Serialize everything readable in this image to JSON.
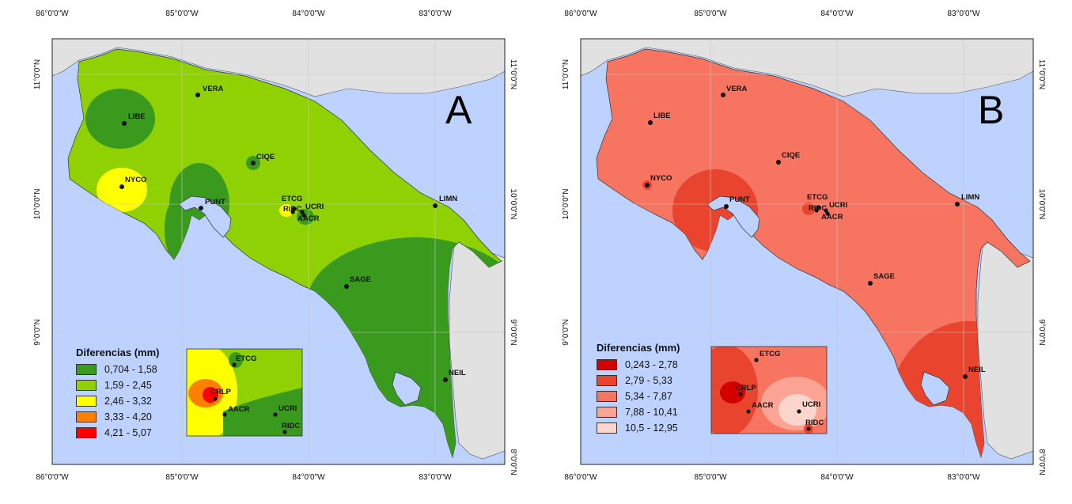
{
  "panel_a": {
    "letter": "A",
    "legend_title": "Diferencias (mm)",
    "legend": [
      {
        "label": "0,704 - 1,58",
        "color": "#3a9a1e"
      },
      {
        "label": "1,59 - 2,45",
        "color": "#8fd102"
      },
      {
        "label": "2,46 - 3,32",
        "color": "#ffff00"
      },
      {
        "label": "3,33 - 4,20",
        "color": "#ff8000"
      },
      {
        "label": "4,21 - 5,07",
        "color": "#ff0000"
      }
    ],
    "stations": {
      "vera": "VERA",
      "libe": "LIBE",
      "ciqe": "CIQE",
      "nyco": "NYCO",
      "punt": "PUNT",
      "etcg": "ETCG",
      "ridc": "RIDC",
      "ucri": "UCRI",
      "aacr": "AACR",
      "limn": "LIMN",
      "sage": "SAGE",
      "neil": "NEIL"
    },
    "inset": {
      "etcg": "ETCG",
      "crlp": "CRLP",
      "aacr": "AACR",
      "ucri": "UCRI",
      "ridc": "RIDC"
    }
  },
  "panel_b": {
    "letter": "B",
    "legend_title": "Diferencias (mm)",
    "legend": [
      {
        "label": "0,243 - 2,78",
        "color": "#d40000"
      },
      {
        "label": "2,79 - 5,33",
        "color": "#e8442e"
      },
      {
        "label": "5,34 - 7,87",
        "color": "#f67460"
      },
      {
        "label": "7,88 - 10,41",
        "color": "#fba493"
      },
      {
        "label": "10,5 - 12,95",
        "color": "#fcd6cc"
      }
    ],
    "stations": {
      "vera": "VERA",
      "libe": "LIBE",
      "ciqe": "CIQE",
      "nyco": "NYCO",
      "punt": "PUNT",
      "etcg": "ETCG",
      "ridc": "RIDC",
      "ucri": "UCRI",
      "aacr": "AACR",
      "limn": "LIMN",
      "sage": "SAGE",
      "neil": "NEIL"
    },
    "inset": {
      "etcg": "ETCG",
      "crlp": "CRLP",
      "aacr": "AACR",
      "ucri": "UCRI",
      "ridc": "RIDC"
    }
  },
  "axes": {
    "lon_ticks": [
      "86°0'0\"W",
      "85°0'0\"W",
      "84°0'0\"W",
      "83°0'0\"W"
    ],
    "lat_ticks": [
      "11°0'0\"N",
      "10°0'0\"N",
      "9°0'0\"N",
      "8°0'0\"N"
    ]
  },
  "colors": {
    "ocean": "#bed2ff",
    "neighbor_land": "#e1e1e1"
  }
}
